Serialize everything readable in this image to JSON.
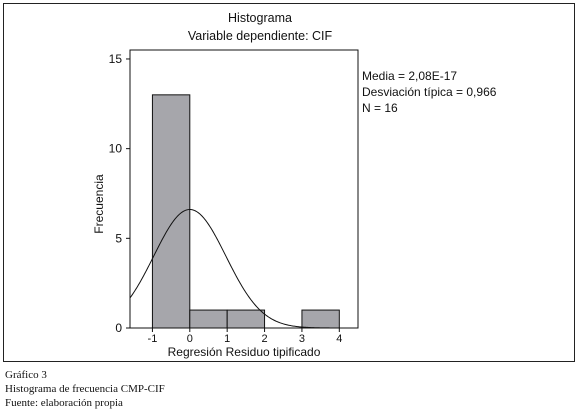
{
  "chart_data": {
    "type": "bar",
    "title": "Histograma",
    "subtitle": "Variable dependiente: CIF",
    "xlabel": "Regresión Residuo tipificado",
    "ylabel": "Frecuencia",
    "xlim": [
      -1.6,
      4.5
    ],
    "ylim": [
      0,
      15.5
    ],
    "x_ticks": [
      -1,
      0,
      1,
      2,
      3,
      4
    ],
    "y_ticks": [
      0,
      5,
      10,
      15
    ],
    "bins": [
      {
        "x0": -1,
        "x1": 0,
        "count": 13
      },
      {
        "x0": 0,
        "x1": 1,
        "count": 1
      },
      {
        "x0": 1,
        "x1": 2,
        "count": 1
      },
      {
        "x0": 3,
        "x1": 4,
        "count": 1
      }
    ],
    "normal_curve": {
      "mean": 2.08e-17,
      "sd": 0.966,
      "n": 16,
      "bin_width": 1
    },
    "stats": [
      "Media = 2,08E-17",
      "Desviación típica = 0,966",
      "N = 16"
    ],
    "bar_color": "#a6a6ab",
    "grid": false
  },
  "caption": {
    "line1": "Gráfico 3",
    "line2": "Histograma de frecuencia CMP-CIF",
    "line3": "Fuente: elaboración propia"
  }
}
